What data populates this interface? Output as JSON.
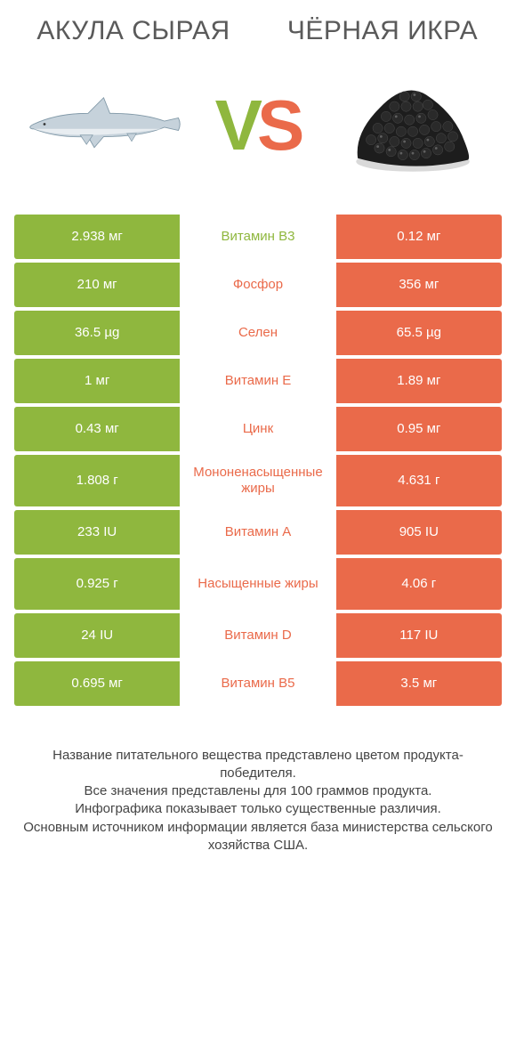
{
  "colors": {
    "left_bar": "#8fb73e",
    "right_bar": "#ea6a4a",
    "label_left_winner": "#8fb73e",
    "label_right_winner": "#ea6a4a",
    "vs_v": "#8fb73e",
    "vs_s": "#ea6a4a",
    "title_text": "#5a5a5a"
  },
  "header": {
    "left_title": "АКУЛА СЫРАЯ",
    "right_title": "ЧЁРНАЯ ИКРА"
  },
  "vs": {
    "v": "V",
    "s": "S"
  },
  "rows": [
    {
      "left": "2.938 мг",
      "label": "Витамин B3",
      "right": "0.12 мг",
      "winner": "left",
      "tall": false
    },
    {
      "left": "210 мг",
      "label": "Фосфор",
      "right": "356 мг",
      "winner": "right",
      "tall": false
    },
    {
      "left": "36.5 µg",
      "label": "Селен",
      "right": "65.5 µg",
      "winner": "right",
      "tall": false
    },
    {
      "left": "1 мг",
      "label": "Витамин E",
      "right": "1.89 мг",
      "winner": "right",
      "tall": false
    },
    {
      "left": "0.43 мг",
      "label": "Цинк",
      "right": "0.95 мг",
      "winner": "right",
      "tall": false
    },
    {
      "left": "1.808 г",
      "label": "Мононенасыщенные жиры",
      "right": "4.631 г",
      "winner": "right",
      "tall": true
    },
    {
      "left": "233 IU",
      "label": "Витамин A",
      "right": "905 IU",
      "winner": "right",
      "tall": false
    },
    {
      "left": "0.925 г",
      "label": "Насыщенные жиры",
      "right": "4.06 г",
      "winner": "right",
      "tall": true
    },
    {
      "left": "24 IU",
      "label": "Витамин D",
      "right": "117 IU",
      "winner": "right",
      "tall": false
    },
    {
      "left": "0.695 мг",
      "label": "Витамин B5",
      "right": "3.5 мг",
      "winner": "right",
      "tall": false
    }
  ],
  "footer": {
    "line1": "Название питательного вещества представлено цветом продукта-победителя.",
    "line2": "Все значения представлены для 100 граммов продукта.",
    "line3": "Инфографика показывает только существенные различия.",
    "line4": "Основным источником информации является база министерства сельского хозяйства США."
  },
  "typography": {
    "title_fontsize": 30,
    "cell_fontsize": 15,
    "footer_fontsize": 15,
    "vs_fontsize": 80
  }
}
